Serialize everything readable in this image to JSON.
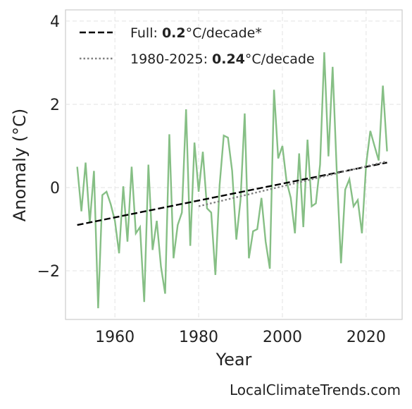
{
  "chart_data": {
    "type": "line",
    "xlabel": "Year",
    "ylabel": "Anomaly (°C)",
    "source": "LocalClimateTrends.com",
    "xlim": [
      1948.2,
      2028.6
    ],
    "xticks": [
      1960,
      1980,
      2000,
      2020
    ],
    "ylim": [
      -3.17,
      4.27
    ],
    "yticks": [
      {
        "value": -2,
        "label": "−2"
      },
      0,
      2,
      4
    ],
    "grid": true,
    "legend": "upper left",
    "series": [
      {
        "color": "#86bf85",
        "style": "solid",
        "x": [
          1951,
          1952,
          1953,
          1954,
          1955,
          1956,
          1957,
          1958,
          1959,
          1960,
          1961,
          1962,
          1963,
          1964,
          1965,
          1966,
          1967,
          1968,
          1969,
          1970,
          1971,
          1972,
          1973,
          1974,
          1975,
          1976,
          1977,
          1978,
          1979,
          1980,
          1981,
          1982,
          1983,
          1984,
          1985,
          1986,
          1987,
          1988,
          1989,
          1990,
          1991,
          1992,
          1993,
          1994,
          1995,
          1996,
          1997,
          1998,
          1999,
          2000,
          2001,
          2002,
          2003,
          2004,
          2005,
          2006,
          2007,
          2008,
          2009,
          2010,
          2011,
          2012,
          2013,
          2014,
          2015,
          2016,
          2017,
          2018,
          2019,
          2020,
          2021,
          2022,
          2023,
          2024,
          2025
        ],
        "values": [
          0.5,
          -0.57,
          0.6,
          -0.85,
          0.4,
          -2.9,
          -0.18,
          -0.1,
          -0.4,
          -0.8,
          -1.58,
          0.03,
          -1.3,
          0.5,
          -1.1,
          -0.95,
          -2.75,
          0.55,
          -1.5,
          -0.8,
          -1.9,
          -2.55,
          1.28,
          -1.7,
          -0.9,
          -0.6,
          1.88,
          -1.4,
          1.08,
          -0.1,
          0.86,
          -0.5,
          -0.6,
          -2.1,
          0.05,
          1.25,
          1.2,
          0.4,
          -1.25,
          -0.3,
          1.78,
          -1.7,
          -1.05,
          -1.0,
          -0.25,
          -1.3,
          -1.95,
          2.35,
          0.7,
          1.0,
          0.15,
          -0.25,
          -1.1,
          0.82,
          -0.95,
          1.15,
          -0.45,
          -0.38,
          0.55,
          3.25,
          0.75,
          2.9,
          0.35,
          -1.82,
          -0.05,
          0.2,
          -0.45,
          -0.3,
          -1.1,
          0.55,
          1.36,
          1.0,
          0.65,
          2.45,
          0.87
        ]
      },
      {
        "name": [
          "Full: ",
          "0.2",
          "°C/decade*"
        ],
        "color": "#000000",
        "style": "dashed",
        "x": [
          1951,
          2025
        ],
        "values": [
          -0.9,
          0.6
        ]
      },
      {
        "name": [
          "1980-2025: ",
          "0.24",
          "°C/decade"
        ],
        "color": "#808080",
        "style": "dotted",
        "x": [
          1980,
          2025
        ],
        "values": [
          -0.45,
          0.63
        ]
      }
    ]
  }
}
